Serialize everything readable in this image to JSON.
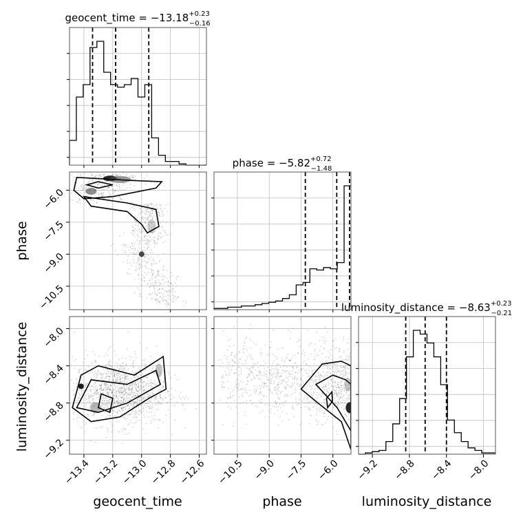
{
  "chart_data": {
    "type": "corner",
    "parameters": [
      "geocent_time",
      "phase",
      "luminosity_distance"
    ],
    "titles": [
      {
        "param": "geocent_time",
        "median": "−13.18",
        "plus": "+0.23",
        "minus": "−0.16",
        "prefix": "geocent_time = "
      },
      {
        "param": "phase",
        "median": "−5.82",
        "plus": "+0.72",
        "minus": "−1.48",
        "prefix": "phase = "
      },
      {
        "param": "luminosity_distance",
        "median": "−8.63",
        "plus": "+0.23",
        "minus": "−0.21",
        "prefix": "luminosity_distance = "
      }
    ],
    "ranges": {
      "geocent_time": [
        -13.5,
        -12.55
      ],
      "phase": [
        -11.6,
        -5.15
      ],
      "luminosity_distance": [
        -9.35,
        -7.87
      ]
    },
    "ticks": {
      "geocent_time": [
        -13.4,
        -13.2,
        -13.0,
        -12.8,
        -12.6
      ],
      "phase": [
        -10.5,
        -9.0,
        -7.5,
        -6.0
      ],
      "luminosity_distance": [
        -9.2,
        -8.8,
        -8.4,
        -8.0
      ]
    },
    "tick_labels": {
      "geocent_time": [
        "−13.4",
        "−13.2",
        "−13.0",
        "−12.8",
        "−12.6"
      ],
      "phase": [
        "−10.5",
        "−9.0",
        "−7.5",
        "−6.0"
      ],
      "luminosity_distance": [
        "−9.2",
        "−8.8",
        "−8.4",
        "−8.0"
      ]
    },
    "quantile_lines": {
      "geocent_time": [
        -13.34,
        -13.18,
        -12.95
      ],
      "phase": [
        -7.3,
        -5.82,
        -5.1
      ],
      "luminosity_distance": [
        -8.84,
        -8.63,
        -8.4
      ]
    },
    "histograms": {
      "geocent_time": {
        "edges_start": -13.5,
        "bin_width": 0.0475,
        "counts": [
          0.2,
          0.55,
          0.65,
          0.95,
          1.0,
          0.75,
          0.65,
          0.63,
          0.65,
          0.7,
          0.55,
          0.65,
          0.22,
          0.08,
          0.03,
          0.03,
          0.01,
          0.0,
          0.0,
          0.0
        ]
      },
      "phase": {
        "edges_start": -11.6,
        "bin_width": 0.3225,
        "counts": [
          0.01,
          0.01,
          0.02,
          0.02,
          0.03,
          0.03,
          0.04,
          0.05,
          0.06,
          0.07,
          0.09,
          0.12,
          0.2,
          0.22,
          0.33,
          0.32,
          0.34,
          0.33,
          0.38,
          1.0
        ]
      },
      "luminosity_distance": {
        "edges_start": -9.35,
        "bin_width": 0.074,
        "counts": [
          0.0,
          0.01,
          0.02,
          0.03,
          0.1,
          0.24,
          0.44,
          0.77,
          0.98,
          0.95,
          0.88,
          0.77,
          0.55,
          0.27,
          0.17,
          0.1,
          0.05,
          0.03,
          0.01,
          0.01
        ]
      }
    },
    "grid": true,
    "axis_labels": [
      "geocent_time",
      "phase",
      "luminosity_distance"
    ]
  }
}
